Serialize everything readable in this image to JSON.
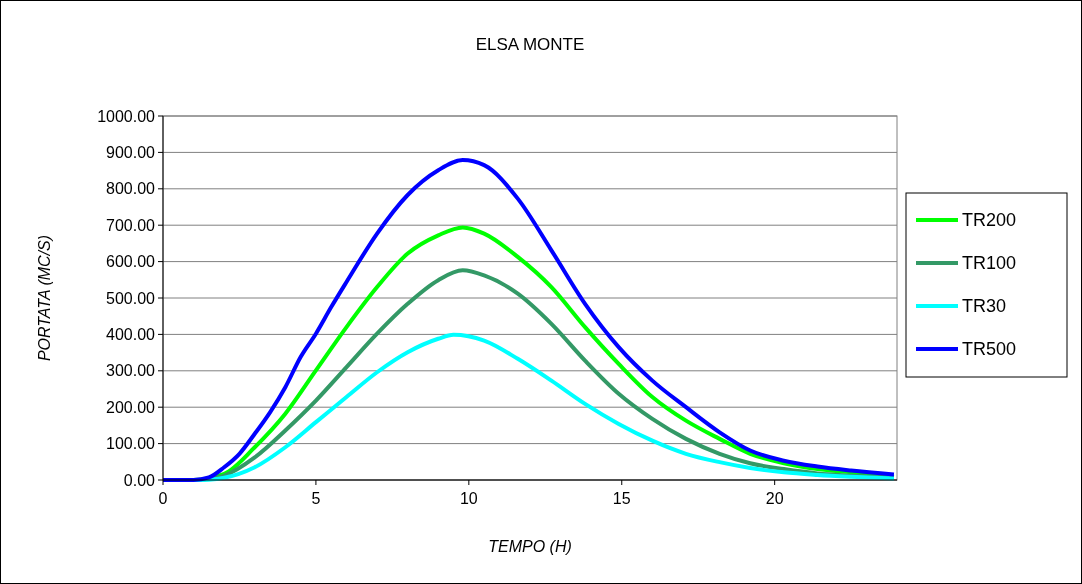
{
  "chart_data": {
    "type": "line",
    "title": "ELSA MONTE",
    "xlabel": "TEMPO (H)",
    "ylabel": "PORTATA (MC/S)",
    "xlim": [
      0,
      24
    ],
    "xticks": [
      0,
      5,
      10,
      15,
      20
    ],
    "ylim": [
      0,
      1000
    ],
    "yticks": [
      {
        "value": 0,
        "label": "0.00"
      },
      {
        "value": 100,
        "label": "100.00"
      },
      {
        "value": 200,
        "label": "200.00"
      },
      {
        "value": 300,
        "label": "300.00"
      },
      {
        "value": 400,
        "label": "400.00"
      },
      {
        "value": 500,
        "label": "500.00"
      },
      {
        "value": 600,
        "label": "600.00"
      },
      {
        "value": 700,
        "label": "700.00"
      },
      {
        "value": 800,
        "label": "800.00"
      },
      {
        "value": 900,
        "label": "900.00"
      },
      {
        "value": 1000,
        "label": "1000.00"
      }
    ],
    "grid": "y",
    "legend": "right",
    "marker": "none",
    "line_style": "solid",
    "series": [
      {
        "name": "TR200",
        "color": "#00ff00",
        "x": [
          0,
          1,
          2,
          3,
          4,
          5,
          6,
          7,
          8,
          9,
          9.8,
          10.5,
          11.6,
          12.7,
          13.8,
          14.9,
          16,
          17.1,
          18.2,
          19.2,
          20.3,
          21.4,
          22.5,
          23.9
        ],
        "values": [
          0,
          0,
          17,
          90,
          182,
          301,
          420,
          530,
          622,
          672,
          694,
          677,
          613,
          530,
          420,
          319,
          228,
          163,
          113,
          72,
          46,
          30,
          21,
          9
        ]
      },
      {
        "name": "TR100",
        "color": "#339966",
        "x": [
          0,
          1,
          1.5,
          2,
          3,
          4,
          5,
          6,
          7,
          8,
          9,
          9.8,
          10.5,
          11.6,
          12.7,
          13.8,
          14.9,
          16,
          17.1,
          18.2,
          19.2,
          20.3,
          21.4,
          22.5,
          23.9
        ],
        "values": [
          0,
          0,
          3,
          12,
          62,
          136,
          218,
          310,
          402,
          484,
          549,
          576,
          562,
          512,
          429,
          328,
          237,
          168,
          113,
          72,
          46,
          30,
          18,
          12,
          6
        ]
      },
      {
        "name": "TR30",
        "color": "#00ffff",
        "x": [
          0,
          1,
          1.5,
          2,
          3,
          4,
          5,
          6,
          7,
          8,
          9,
          9.5,
          10.5,
          11.6,
          12.7,
          13.8,
          14.9,
          16,
          17.1,
          18.2,
          19.2,
          20.3,
          21.4,
          22.5,
          23.9
        ],
        "values": [
          0,
          0,
          1,
          6,
          35,
          90,
          159,
          228,
          296,
          351,
          388,
          399,
          383,
          333,
          273,
          209,
          154,
          108,
          72,
          49,
          33,
          21,
          14,
          9,
          4
        ]
      },
      {
        "name": "TR500",
        "color": "#0000ff",
        "x": [
          0,
          1,
          1.5,
          2,
          2.5,
          3,
          3.5,
          4,
          4.5,
          5,
          5.5,
          6,
          7,
          8,
          9,
          9.8,
          10.5,
          11.6,
          12.7,
          13.8,
          14.9,
          16,
          17.1,
          18.2,
          19.2,
          20.3,
          21.4,
          22.5,
          23.9
        ],
        "values": [
          0,
          0,
          7,
          35,
          72,
          127,
          186,
          255,
          338,
          402,
          475,
          544,
          677,
          783,
          851,
          879,
          865,
          773,
          631,
          484,
          365,
          273,
          200,
          131,
          81,
          53,
          37,
          26,
          15
        ]
      }
    ]
  }
}
